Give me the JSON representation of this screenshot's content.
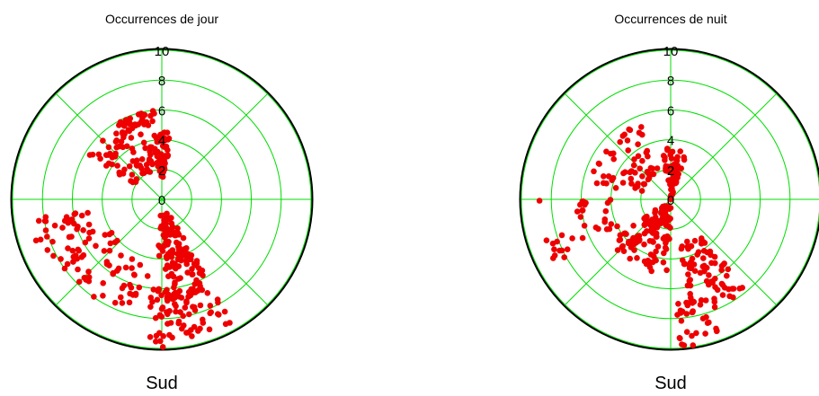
{
  "chart_data": [
    {
      "type": "scatter",
      "subtype": "polar",
      "title": "Occurrences de jour",
      "bottom_label": "Sud",
      "r_ticks": [
        "0",
        "2",
        "4",
        "6",
        "8",
        "10"
      ],
      "rlim": [
        0,
        10
      ],
      "grid": true,
      "colors": {
        "grid": "#00dd00",
        "outer": "#000000",
        "points": "#ee0000"
      },
      "clusters": [
        {
          "angle": [
            -8,
            8
          ],
          "r": [
            1.5,
            4.5
          ],
          "n": 60
        },
        {
          "angle": [
            150,
            185
          ],
          "r": [
            1,
            4
          ],
          "n": 70
        },
        {
          "angle": [
            150,
            178
          ],
          "r": [
            4,
            9.5
          ],
          "n": 110
        },
        {
          "angle": [
            176,
            187
          ],
          "r": [
            6,
            10
          ],
          "n": 25
        },
        {
          "angle": [
            190,
            240
          ],
          "r": [
            4,
            8
          ],
          "n": 60
        },
        {
          "angle": [
            240,
            262
          ],
          "r": [
            5,
            9
          ],
          "n": 35
        },
        {
          "angle": [
            300,
            350
          ],
          "r": [
            2,
            6
          ],
          "n": 70
        },
        {
          "angle": [
            330,
            355
          ],
          "r": [
            5,
            6
          ],
          "n": 25
        }
      ]
    },
    {
      "type": "scatter",
      "subtype": "polar",
      "title": "Occurrences de nuit",
      "bottom_label": "Sud",
      "r_ticks": [
        "0",
        "2",
        "4",
        "6",
        "8",
        "10"
      ],
      "rlim": [
        0,
        10
      ],
      "grid": true,
      "colors": {
        "grid": "#00dd00",
        "outer": "#000000",
        "points": "#ee0000"
      },
      "clusters": [
        {
          "angle": [
            -10,
            20
          ],
          "r": [
            0,
            3.5
          ],
          "n": 60
        },
        {
          "angle": [
            140,
            170
          ],
          "r": [
            3,
            8
          ],
          "n": 80
        },
        {
          "angle": [
            160,
            178
          ],
          "r": [
            7,
            10
          ],
          "n": 30
        },
        {
          "angle": [
            180,
            235
          ],
          "r": [
            0.5,
            5
          ],
          "n": 120
        },
        {
          "angle": [
            240,
            270
          ],
          "r": [
            4,
            9.5
          ],
          "n": 35
        },
        {
          "angle": [
            280,
            340
          ],
          "r": [
            2,
            5.5
          ],
          "n": 60
        }
      ]
    }
  ]
}
